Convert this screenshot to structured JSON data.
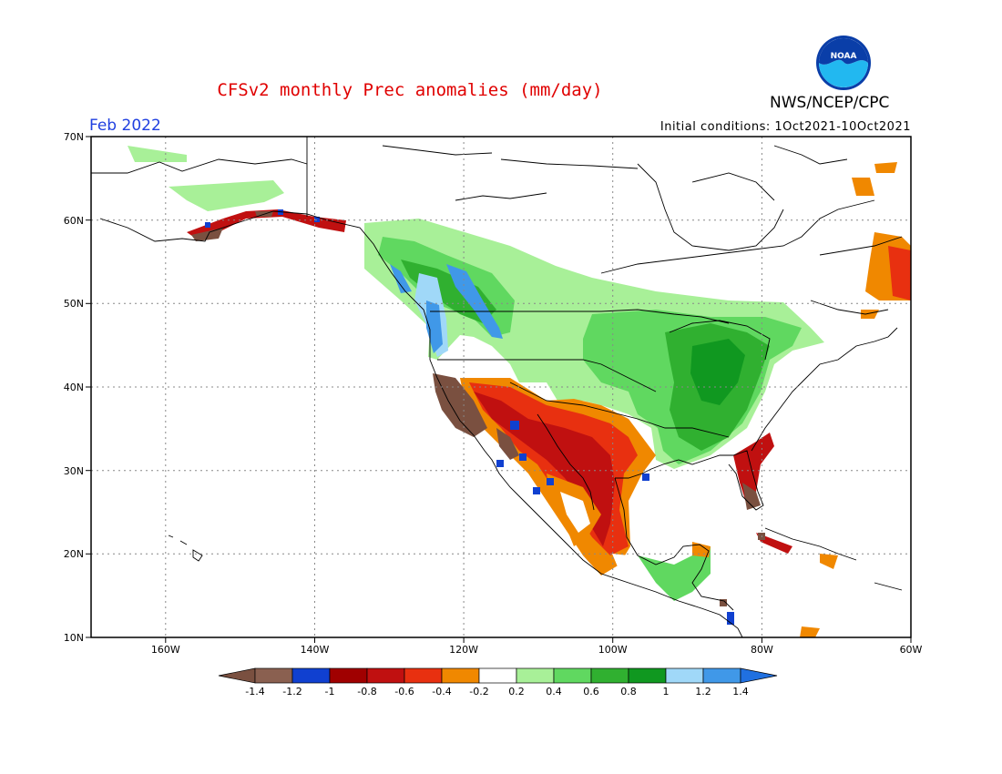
{
  "title": "CFSv2 monthly Prec anomalies (mm/day)",
  "month": "Feb 2022",
  "agency": "NWS/NCEP/CPC",
  "logo_text": "NOAA",
  "initial_conditions": "Initial conditions: 1Oct2021-10Oct2021",
  "title_color": "#e00000",
  "month_color": "#2040e0",
  "axis_labels": {
    "lat": [
      "70N",
      "60N",
      "50N",
      "40N",
      "30N",
      "20N",
      "10N"
    ],
    "lon": [
      "160W",
      "140W",
      "120W",
      "100W",
      "80W",
      "60W"
    ]
  },
  "map": {
    "lat_range": [
      10,
      70
    ],
    "lon_range": [
      -170,
      -60
    ],
    "grid": "dotted every 10 degrees"
  },
  "legend": {
    "labels": [
      "-1.4",
      "-1.2",
      "-1",
      "-0.8",
      "-0.6",
      "-0.4",
      "-0.2",
      "0.2",
      "0.4",
      "0.6",
      "0.8",
      "1",
      "1.2",
      "1.4"
    ],
    "colors": [
      "#7a5040",
      "#8a6050",
      "#1040d0",
      "#a00000",
      "#c01010",
      "#e83010",
      "#f08800",
      "#ffffff",
      "#a8f098",
      "#60d860",
      "#30b030",
      "#109820",
      "#a0d8f8",
      "#4098e8",
      "#2070e0"
    ]
  }
}
